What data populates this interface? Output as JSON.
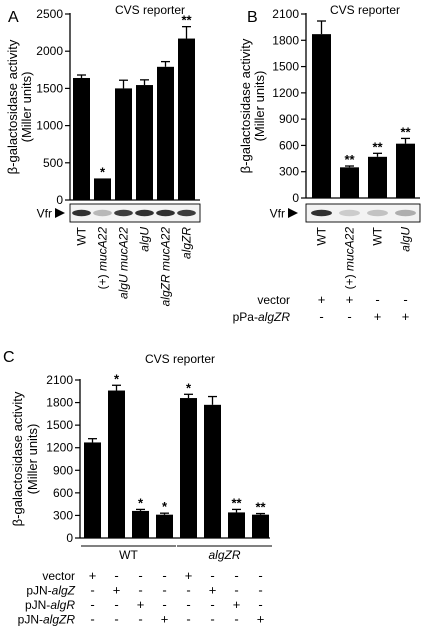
{
  "chart_data": [
    {
      "panel": "A",
      "type": "bar",
      "title": "CVS reporter",
      "ylabel": "β-galactosidase activity (Miller units)",
      "ylabel_lines": [
        "β-galactosidase activity",
        "(Miller units)"
      ],
      "ylim": [
        0,
        2500
      ],
      "yticks": [
        0,
        500,
        1000,
        1500,
        2000,
        2500
      ],
      "categories": [
        "WT",
        "(+) mucA22",
        "algU mucA22",
        "algU",
        "algZR mucA22",
        "algZR"
      ],
      "category_parts": [
        [
          {
            "t": "WT",
            "i": false
          }
        ],
        [
          {
            "t": "(+) ",
            "i": false
          },
          {
            "t": "mucA22",
            "i": true
          }
        ],
        [
          {
            "t": "algU mucA22",
            "i": true
          }
        ],
        [
          {
            "t": "algU",
            "i": true
          }
        ],
        [
          {
            "t": "algZR mucA22",
            "i": true
          }
        ],
        [
          {
            "t": "algZR",
            "i": true
          }
        ]
      ],
      "values": [
        1640,
        290,
        1500,
        1545,
        1790,
        2170
      ],
      "errors": [
        40,
        0,
        110,
        70,
        70,
        160
      ],
      "significance": [
        "",
        "*",
        "",
        "",
        "",
        "**"
      ],
      "blot_label": "Vfr",
      "blot_intensity": [
        0.9,
        0.25,
        0.85,
        0.9,
        0.9,
        0.85
      ]
    },
    {
      "panel": "B",
      "type": "bar",
      "title": "CVS reporter",
      "ylabel": "β-galactosidase activity (Miller units)",
      "ylabel_lines": [
        "β-galactosidase activity",
        "(Miller units)"
      ],
      "ylim": [
        0,
        2100
      ],
      "yticks": [
        0,
        300,
        600,
        900,
        1200,
        1500,
        1800,
        2100
      ],
      "categories": [
        "WT",
        "(+) mucA22",
        "WT",
        "algU"
      ],
      "category_parts": [
        [
          {
            "t": "WT",
            "i": false
          }
        ],
        [
          {
            "t": "(+) ",
            "i": false
          },
          {
            "t": "mucA22",
            "i": true
          }
        ],
        [
          {
            "t": "WT",
            "i": false
          }
        ],
        [
          {
            "t": "algU",
            "i": true
          }
        ]
      ],
      "values": [
        1870,
        350,
        470,
        620
      ],
      "errors": [
        150,
        15,
        40,
        60
      ],
      "significance": [
        "",
        "**",
        "**",
        "**"
      ],
      "blot_label": "Vfr",
      "blot_intensity": [
        0.9,
        0.15,
        0.2,
        0.3
      ],
      "conditions": [
        {
          "parts": [
            {
              "t": "vector",
              "i": false
            }
          ],
          "marks": [
            "+",
            "+",
            "-",
            "-"
          ]
        },
        {
          "parts": [
            {
              "t": "pPa-",
              "i": false
            },
            {
              "t": "algZR",
              "i": true
            }
          ],
          "marks": [
            "-",
            "-",
            "+",
            "+"
          ]
        }
      ]
    },
    {
      "panel": "C",
      "type": "bar",
      "title": "CVS reporter",
      "ylabel": "β-galactosidase activity (Miller units)",
      "ylabel_lines": [
        "β-galactosidase activity",
        "(Miller units)"
      ],
      "ylim": [
        0,
        2100
      ],
      "yticks": [
        0,
        300,
        600,
        900,
        1200,
        1500,
        1800,
        2100
      ],
      "values": [
        1270,
        1960,
        360,
        310,
        1860,
        1770,
        340,
        310
      ],
      "errors": [
        50,
        70,
        20,
        20,
        50,
        110,
        40,
        15
      ],
      "significance": [
        "",
        "*",
        "*",
        "*",
        "*",
        "",
        "**",
        "**"
      ],
      "groups": [
        {
          "parts": [
            {
              "t": "WT",
              "i": false
            }
          ],
          "from": 0,
          "to": 3
        },
        {
          "parts": [
            {
              "t": "algZR",
              "i": true
            }
          ],
          "from": 4,
          "to": 7
        }
      ],
      "conditions": [
        {
          "parts": [
            {
              "t": "vector",
              "i": false
            }
          ],
          "marks": [
            "+",
            "-",
            "-",
            "-",
            "+",
            "-",
            "-",
            "-"
          ]
        },
        {
          "parts": [
            {
              "t": "pJN-",
              "i": false
            },
            {
              "t": "algZ",
              "i": true
            }
          ],
          "marks": [
            "-",
            "+",
            "-",
            "-",
            "-",
            "+",
            "-",
            "-"
          ]
        },
        {
          "parts": [
            {
              "t": "pJN-",
              "i": false
            },
            {
              "t": "algR",
              "i": true
            }
          ],
          "marks": [
            "-",
            "-",
            "+",
            "-",
            "-",
            "-",
            "+",
            "-"
          ]
        },
        {
          "parts": [
            {
              "t": "pJN-",
              "i": false
            },
            {
              "t": "algZR",
              "i": true
            }
          ],
          "marks": [
            "-",
            "-",
            "-",
            "+",
            "-",
            "-",
            "-",
            "+"
          ]
        }
      ]
    }
  ],
  "panel_labels": [
    "A",
    "B",
    "C"
  ]
}
